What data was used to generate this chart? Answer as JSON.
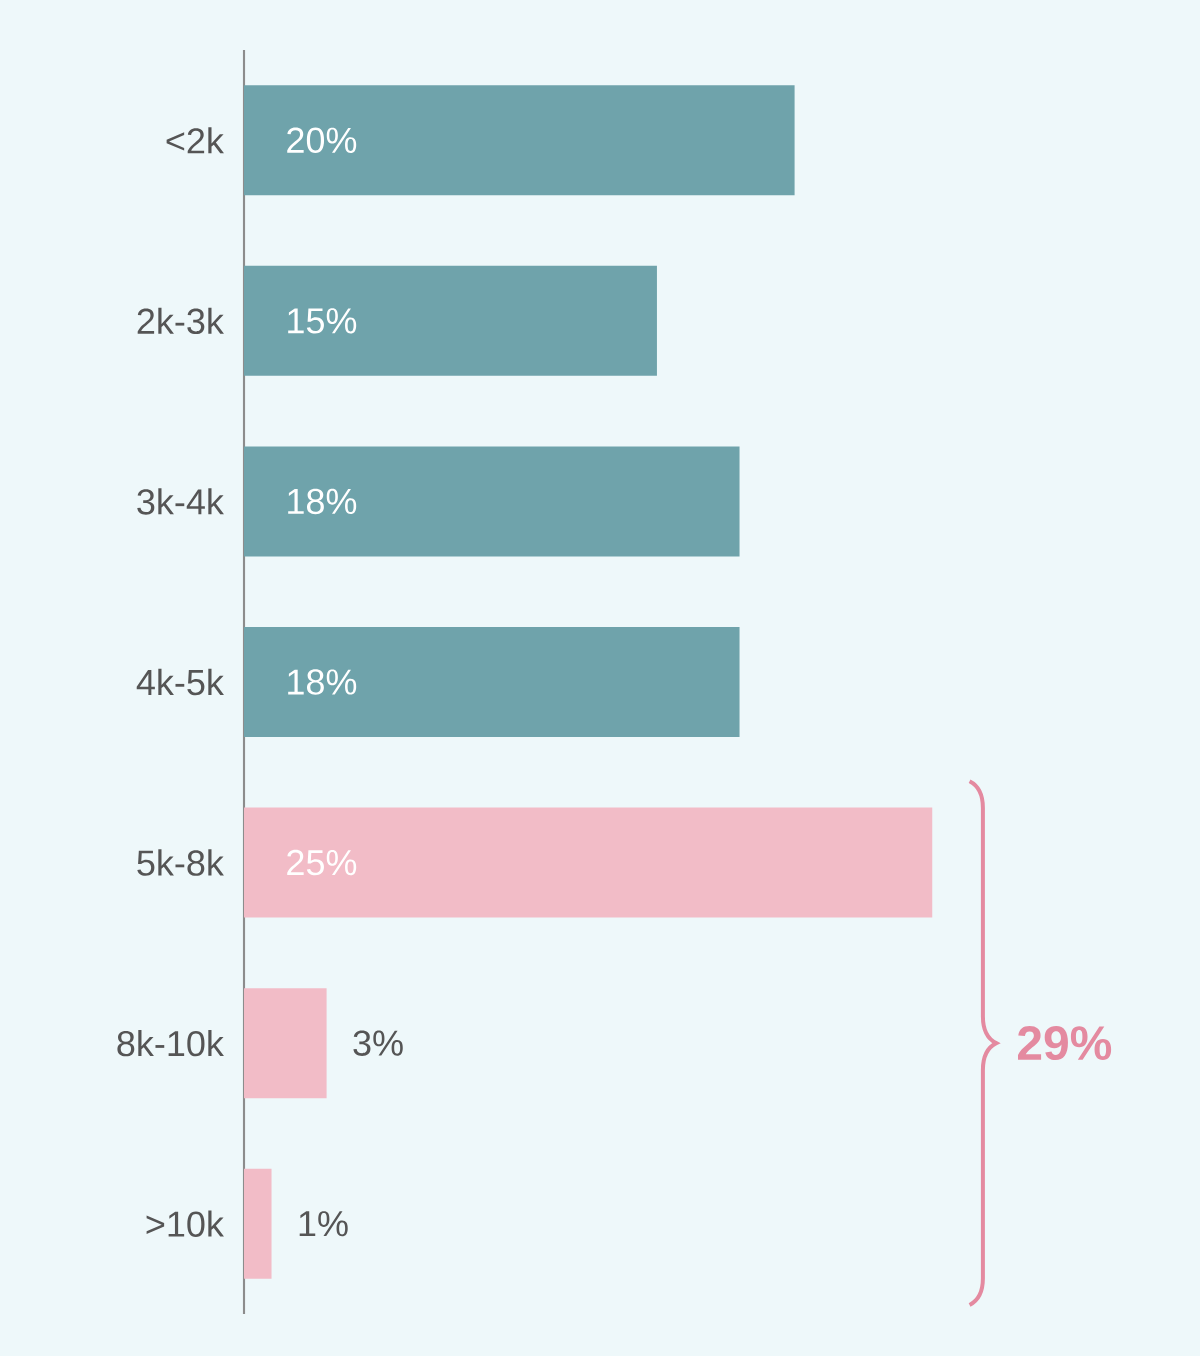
{
  "chart_data": {
    "type": "bar",
    "orientation": "horizontal",
    "categories": [
      "<2k",
      "2k-3k",
      "3k-4k",
      "4k-5k",
      "5k-8k",
      "8k-10k",
      ">10k"
    ],
    "values": [
      20,
      15,
      18,
      18,
      25,
      3,
      1
    ],
    "colors": [
      "#6fa3ab",
      "#6fa3ab",
      "#6fa3ab",
      "#6fa3ab",
      "#f2bcc7",
      "#f2bcc7",
      "#f2bcc7"
    ],
    "value_labels": [
      "20%",
      "15%",
      "18%",
      "18%",
      "25%",
      "3%",
      "1%"
    ],
    "annotations": [
      "29%"
    ],
    "tick_labels": "y"
  }
}
